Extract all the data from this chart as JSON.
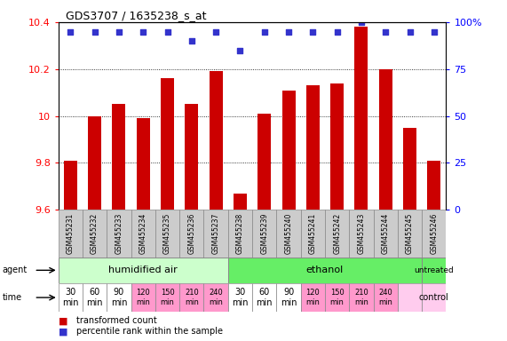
{
  "title": "GDS3707 / 1635238_s_at",
  "samples": [
    "GSM455231",
    "GSM455232",
    "GSM455233",
    "GSM455234",
    "GSM455235",
    "GSM455236",
    "GSM455237",
    "GSM455238",
    "GSM455239",
    "GSM455240",
    "GSM455241",
    "GSM455242",
    "GSM455243",
    "GSM455244",
    "GSM455245",
    "GSM455246"
  ],
  "bar_values": [
    9.81,
    10.0,
    10.05,
    9.99,
    10.16,
    10.05,
    10.19,
    9.67,
    10.01,
    10.11,
    10.13,
    10.14,
    10.38,
    10.2,
    9.95,
    9.81
  ],
  "percentile_values": [
    95,
    95,
    95,
    95,
    95,
    90,
    95,
    85,
    95,
    95,
    95,
    95,
    100,
    95,
    95,
    95
  ],
  "bar_color": "#cc0000",
  "dot_color": "#3333cc",
  "ylim": [
    9.6,
    10.4
  ],
  "yticks": [
    9.6,
    9.8,
    10.0,
    10.2,
    10.4
  ],
  "right_yticks": [
    0,
    25,
    50,
    75,
    100
  ],
  "right_ylabels": [
    "0",
    "25",
    "50",
    "75",
    "100%"
  ],
  "grid_values": [
    9.8,
    10.0,
    10.2
  ],
  "humidified_color": "#ccffcc",
  "ethanol_color": "#66ee66",
  "untreated_color": "#66ee66",
  "sample_box_color": "#cccccc",
  "time_white_color": "#ffffff",
  "time_pink_color": "#ff99cc",
  "time_lightpink_color": "#ffccee",
  "white_cells": [
    0,
    1,
    2,
    7,
    8,
    9
  ],
  "pink_cells": [
    3,
    4,
    5,
    6,
    10,
    11,
    12,
    13
  ],
  "legend_bar_color": "#cc0000",
  "legend_dot_color": "#3333cc",
  "legend_bar_label": "transformed count",
  "legend_dot_label": "percentile rank within the sample"
}
